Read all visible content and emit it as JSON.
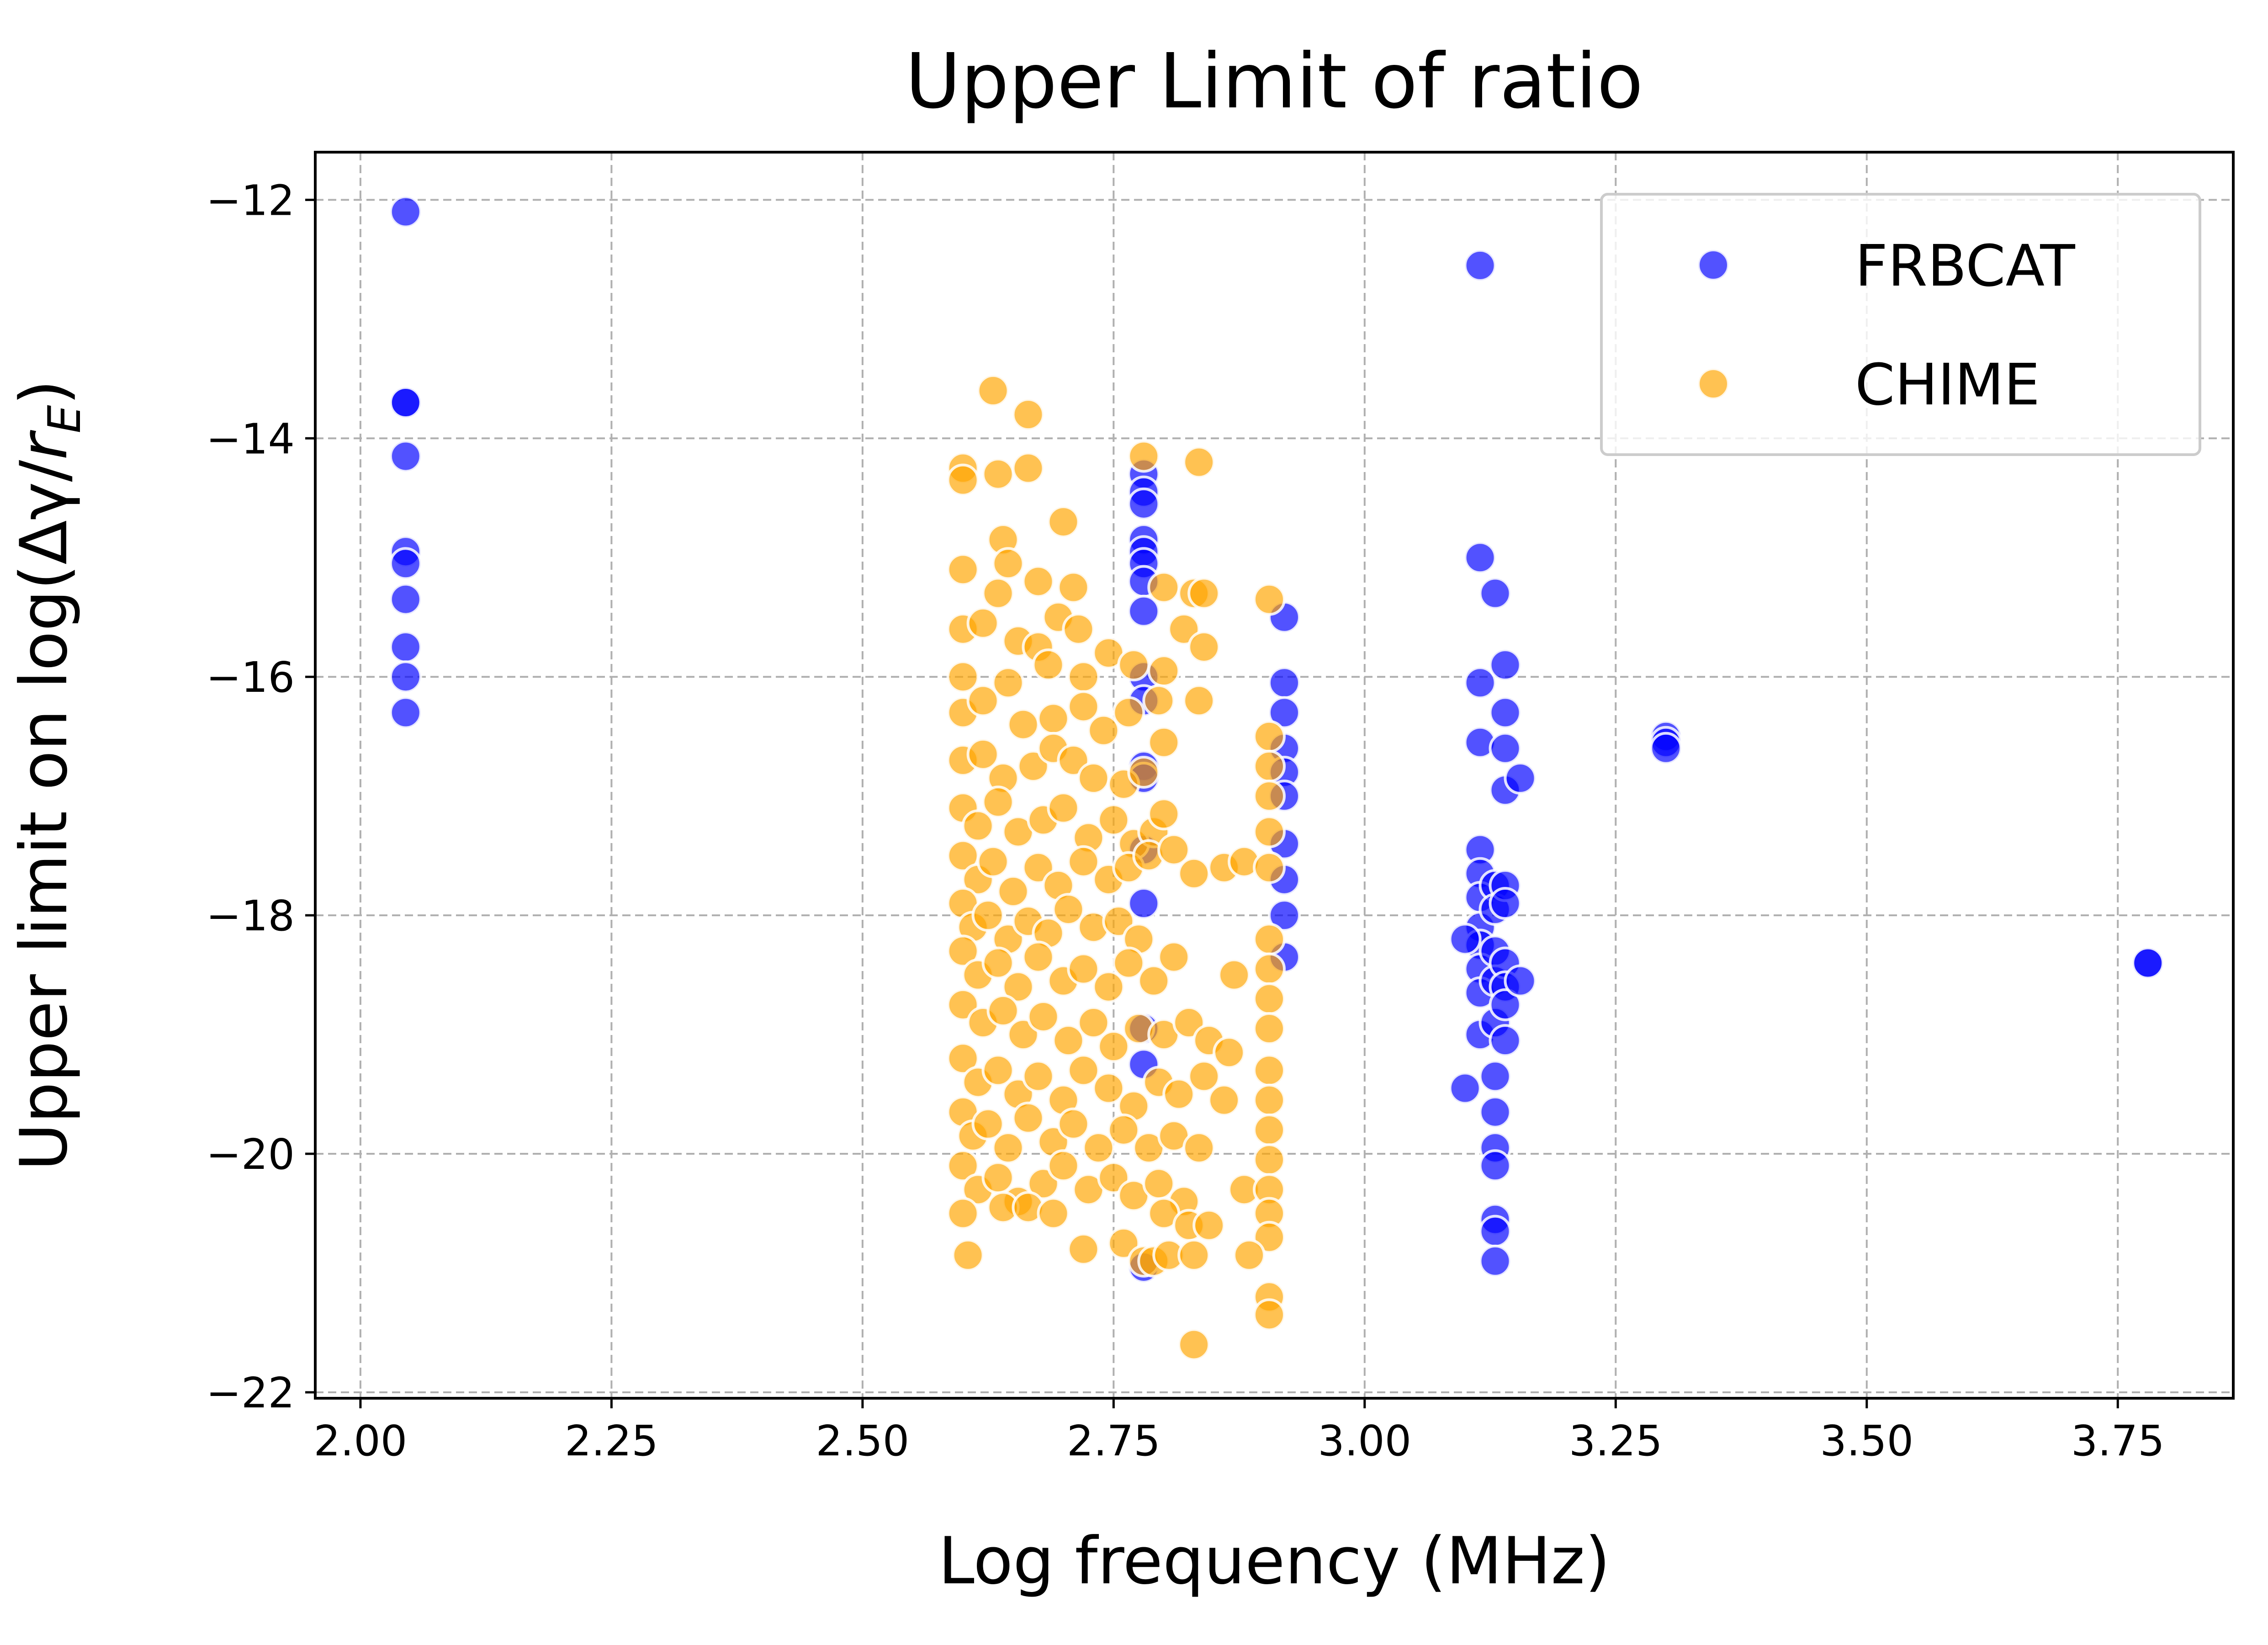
{
  "chart_data": {
    "type": "scatter",
    "title": "Upper Limit of ratio",
    "xlabel": "Log frequency (MHz)",
    "ylabel_prefix": "Upper limit on log(Δγ/",
    "ylabel_var": "r",
    "ylabel_sub": "E",
    "ylabel_suffix": ")",
    "xlim": [
      1.955,
      3.865
    ],
    "ylim": [
      -22.05,
      -11.6
    ],
    "xticks": [
      2.0,
      2.25,
      2.5,
      2.75,
      3.0,
      3.25,
      3.5,
      3.75
    ],
    "xtick_labels": [
      "2.00",
      "2.25",
      "2.50",
      "2.75",
      "3.00",
      "3.25",
      "3.50",
      "3.75"
    ],
    "yticks": [
      -22,
      -20,
      -18,
      -16,
      -14,
      -12
    ],
    "ytick_labels": [
      "−22",
      "−20",
      "−18",
      "−16",
      "−14",
      "−12"
    ],
    "grid": true,
    "legend_position": "top-right",
    "series": [
      {
        "name": "FRBCAT",
        "color": "#0000ff",
        "points": [
          [
            2.045,
            -12.1
          ],
          [
            2.045,
            -13.7
          ],
          [
            2.045,
            -13.7
          ],
          [
            2.045,
            -14.15
          ],
          [
            2.045,
            -14.95
          ],
          [
            2.045,
            -15.05
          ],
          [
            2.045,
            -15.35
          ],
          [
            2.045,
            -15.75
          ],
          [
            2.045,
            -16.0
          ],
          [
            2.045,
            -16.3
          ],
          [
            3.115,
            -12.55
          ],
          [
            3.3,
            -16.5
          ],
          [
            3.3,
            -16.55
          ],
          [
            3.3,
            -16.6
          ],
          [
            3.78,
            -18.4
          ],
          [
            3.78,
            -18.4
          ],
          [
            2.78,
            -14.3
          ],
          [
            2.78,
            -14.45
          ],
          [
            2.78,
            -14.55
          ],
          [
            2.78,
            -14.85
          ],
          [
            2.78,
            -14.95
          ],
          [
            2.78,
            -15.05
          ],
          [
            2.78,
            -15.2
          ],
          [
            2.78,
            -15.45
          ],
          [
            2.78,
            -16.0
          ],
          [
            2.78,
            -16.2
          ],
          [
            2.78,
            -16.75
          ],
          [
            2.78,
            -16.85
          ],
          [
            2.78,
            -17.45
          ],
          [
            2.78,
            -17.9
          ],
          [
            2.78,
            -18.95
          ],
          [
            2.78,
            -19.25
          ],
          [
            2.78,
            -20.95
          ],
          [
            2.92,
            -15.5
          ],
          [
            2.92,
            -16.05
          ],
          [
            2.92,
            -16.3
          ],
          [
            2.92,
            -16.6
          ],
          [
            2.92,
            -16.8
          ],
          [
            2.92,
            -17.0
          ],
          [
            2.92,
            -17.4
          ],
          [
            2.92,
            -17.7
          ],
          [
            2.92,
            -18.0
          ],
          [
            2.92,
            -18.35
          ],
          [
            3.115,
            -15.0
          ],
          [
            3.115,
            -16.05
          ],
          [
            3.115,
            -16.55
          ],
          [
            3.115,
            -17.45
          ],
          [
            3.115,
            -17.65
          ],
          [
            3.115,
            -17.85
          ],
          [
            3.115,
            -18.1
          ],
          [
            3.115,
            -18.25
          ],
          [
            3.115,
            -18.45
          ],
          [
            3.115,
            -18.65
          ],
          [
            3.115,
            -19.0
          ],
          [
            3.1,
            -18.2
          ],
          [
            3.1,
            -19.45
          ],
          [
            3.13,
            -15.3
          ],
          [
            3.13,
            -17.75
          ],
          [
            3.13,
            -17.95
          ],
          [
            3.13,
            -18.3
          ],
          [
            3.13,
            -18.55
          ],
          [
            3.13,
            -18.9
          ],
          [
            3.13,
            -19.35
          ],
          [
            3.13,
            -19.65
          ],
          [
            3.13,
            -19.95
          ],
          [
            3.13,
            -20.1
          ],
          [
            3.13,
            -20.55
          ],
          [
            3.13,
            -20.65
          ],
          [
            3.13,
            -20.9
          ],
          [
            3.14,
            -15.9
          ],
          [
            3.14,
            -16.3
          ],
          [
            3.14,
            -16.6
          ],
          [
            3.14,
            -16.95
          ],
          [
            3.14,
            -17.75
          ],
          [
            3.14,
            -17.9
          ],
          [
            3.14,
            -18.4
          ],
          [
            3.14,
            -18.6
          ],
          [
            3.14,
            -18.75
          ],
          [
            3.14,
            -19.05
          ],
          [
            3.155,
            -16.85
          ],
          [
            3.155,
            -18.55
          ]
        ]
      },
      {
        "name": "CHIME",
        "color": "#ffa500",
        "points": [
          [
            2.63,
            -13.6
          ],
          [
            2.665,
            -13.8
          ],
          [
            2.78,
            -14.15
          ],
          [
            2.835,
            -14.2
          ],
          [
            2.6,
            -14.25
          ],
          [
            2.6,
            -14.35
          ],
          [
            2.635,
            -14.3
          ],
          [
            2.665,
            -14.25
          ],
          [
            2.7,
            -14.7
          ],
          [
            2.64,
            -14.85
          ],
          [
            2.6,
            -15.1
          ],
          [
            2.635,
            -15.3
          ],
          [
            2.645,
            -15.05
          ],
          [
            2.675,
            -15.2
          ],
          [
            2.71,
            -15.25
          ],
          [
            2.8,
            -15.25
          ],
          [
            2.83,
            -15.3
          ],
          [
            2.84,
            -15.3
          ],
          [
            2.905,
            -15.35
          ],
          [
            2.82,
            -15.6
          ],
          [
            2.84,
            -15.75
          ],
          [
            2.6,
            -15.6
          ],
          [
            2.62,
            -15.55
          ],
          [
            2.655,
            -15.7
          ],
          [
            2.675,
            -15.75
          ],
          [
            2.695,
            -15.5
          ],
          [
            2.715,
            -15.6
          ],
          [
            2.745,
            -15.8
          ],
          [
            2.77,
            -15.9
          ],
          [
            2.8,
            -15.95
          ],
          [
            2.72,
            -16.0
          ],
          [
            2.685,
            -15.9
          ],
          [
            2.645,
            -16.05
          ],
          [
            2.6,
            -16.0
          ],
          [
            2.6,
            -16.3
          ],
          [
            2.62,
            -16.2
          ],
          [
            2.66,
            -16.4
          ],
          [
            2.69,
            -16.35
          ],
          [
            2.72,
            -16.25
          ],
          [
            2.74,
            -16.45
          ],
          [
            2.765,
            -16.3
          ],
          [
            2.795,
            -16.2
          ],
          [
            2.835,
            -16.2
          ],
          [
            2.8,
            -16.55
          ],
          [
            2.905,
            -16.5
          ],
          [
            2.6,
            -16.7
          ],
          [
            2.62,
            -16.65
          ],
          [
            2.64,
            -16.85
          ],
          [
            2.67,
            -16.75
          ],
          [
            2.69,
            -16.6
          ],
          [
            2.71,
            -16.7
          ],
          [
            2.73,
            -16.85
          ],
          [
            2.76,
            -16.9
          ],
          [
            2.78,
            -16.8
          ],
          [
            2.905,
            -16.75
          ],
          [
            2.905,
            -17.0
          ],
          [
            2.6,
            -17.1
          ],
          [
            2.615,
            -17.25
          ],
          [
            2.635,
            -17.05
          ],
          [
            2.655,
            -17.3
          ],
          [
            2.68,
            -17.2
          ],
          [
            2.7,
            -17.1
          ],
          [
            2.725,
            -17.35
          ],
          [
            2.75,
            -17.2
          ],
          [
            2.77,
            -17.4
          ],
          [
            2.79,
            -17.3
          ],
          [
            2.8,
            -17.15
          ],
          [
            2.905,
            -17.3
          ],
          [
            2.6,
            -17.5
          ],
          [
            2.615,
            -17.7
          ],
          [
            2.63,
            -17.55
          ],
          [
            2.65,
            -17.8
          ],
          [
            2.675,
            -17.6
          ],
          [
            2.695,
            -17.75
          ],
          [
            2.72,
            -17.55
          ],
          [
            2.745,
            -17.7
          ],
          [
            2.765,
            -17.6
          ],
          [
            2.785,
            -17.5
          ],
          [
            2.81,
            -17.45
          ],
          [
            2.83,
            -17.65
          ],
          [
            2.86,
            -17.6
          ],
          [
            2.88,
            -17.55
          ],
          [
            2.905,
            -17.6
          ],
          [
            2.6,
            -17.9
          ],
          [
            2.61,
            -18.1
          ],
          [
            2.625,
            -18.0
          ],
          [
            2.645,
            -18.2
          ],
          [
            2.665,
            -18.05
          ],
          [
            2.685,
            -18.15
          ],
          [
            2.705,
            -17.95
          ],
          [
            2.73,
            -18.1
          ],
          [
            2.755,
            -18.05
          ],
          [
            2.775,
            -18.2
          ],
          [
            2.905,
            -18.2
          ],
          [
            2.6,
            -18.3
          ],
          [
            2.615,
            -18.5
          ],
          [
            2.635,
            -18.4
          ],
          [
            2.655,
            -18.6
          ],
          [
            2.675,
            -18.35
          ],
          [
            2.7,
            -18.55
          ],
          [
            2.72,
            -18.45
          ],
          [
            2.745,
            -18.6
          ],
          [
            2.765,
            -18.4
          ],
          [
            2.79,
            -18.55
          ],
          [
            2.81,
            -18.35
          ],
          [
            2.87,
            -18.5
          ],
          [
            2.905,
            -18.45
          ],
          [
            2.905,
            -18.7
          ],
          [
            2.6,
            -18.75
          ],
          [
            2.62,
            -18.9
          ],
          [
            2.64,
            -18.8
          ],
          [
            2.66,
            -19.0
          ],
          [
            2.68,
            -18.85
          ],
          [
            2.705,
            -19.05
          ],
          [
            2.73,
            -18.9
          ],
          [
            2.75,
            -19.1
          ],
          [
            2.775,
            -18.95
          ],
          [
            2.8,
            -19.0
          ],
          [
            2.825,
            -18.9
          ],
          [
            2.845,
            -19.05
          ],
          [
            2.865,
            -19.15
          ],
          [
            2.905,
            -18.95
          ],
          [
            2.6,
            -19.2
          ],
          [
            2.615,
            -19.4
          ],
          [
            2.635,
            -19.3
          ],
          [
            2.655,
            -19.5
          ],
          [
            2.675,
            -19.35
          ],
          [
            2.7,
            -19.55
          ],
          [
            2.72,
            -19.3
          ],
          [
            2.745,
            -19.45
          ],
          [
            2.77,
            -19.6
          ],
          [
            2.795,
            -19.4
          ],
          [
            2.815,
            -19.5
          ],
          [
            2.84,
            -19.35
          ],
          [
            2.86,
            -19.55
          ],
          [
            2.905,
            -19.3
          ],
          [
            2.905,
            -19.55
          ],
          [
            2.6,
            -19.65
          ],
          [
            2.61,
            -19.85
          ],
          [
            2.625,
            -19.75
          ],
          [
            2.645,
            -19.95
          ],
          [
            2.665,
            -19.7
          ],
          [
            2.69,
            -19.9
          ],
          [
            2.71,
            -19.75
          ],
          [
            2.735,
            -19.95
          ],
          [
            2.76,
            -19.8
          ],
          [
            2.785,
            -19.95
          ],
          [
            2.81,
            -19.85
          ],
          [
            2.835,
            -19.95
          ],
          [
            2.905,
            -19.8
          ],
          [
            2.905,
            -20.05
          ],
          [
            2.6,
            -20.1
          ],
          [
            2.615,
            -20.3
          ],
          [
            2.635,
            -20.2
          ],
          [
            2.655,
            -20.4
          ],
          [
            2.68,
            -20.25
          ],
          [
            2.7,
            -20.1
          ],
          [
            2.725,
            -20.3
          ],
          [
            2.75,
            -20.2
          ],
          [
            2.77,
            -20.35
          ],
          [
            2.795,
            -20.25
          ],
          [
            2.82,
            -20.4
          ],
          [
            2.88,
            -20.3
          ],
          [
            2.905,
            -20.3
          ],
          [
            2.6,
            -20.5
          ],
          [
            2.64,
            -20.45
          ],
          [
            2.665,
            -20.45
          ],
          [
            2.69,
            -20.5
          ],
          [
            2.8,
            -20.5
          ],
          [
            2.825,
            -20.6
          ],
          [
            2.845,
            -20.6
          ],
          [
            2.905,
            -20.5
          ],
          [
            2.905,
            -20.7
          ],
          [
            2.76,
            -20.75
          ],
          [
            2.72,
            -20.8
          ],
          [
            2.605,
            -20.85
          ],
          [
            2.78,
            -20.9
          ],
          [
            2.79,
            -20.9
          ],
          [
            2.805,
            -20.85
          ],
          [
            2.83,
            -20.85
          ],
          [
            2.885,
            -20.85
          ],
          [
            2.905,
            -21.2
          ],
          [
            2.905,
            -21.35
          ],
          [
            2.83,
            -21.6
          ]
        ]
      }
    ]
  }
}
